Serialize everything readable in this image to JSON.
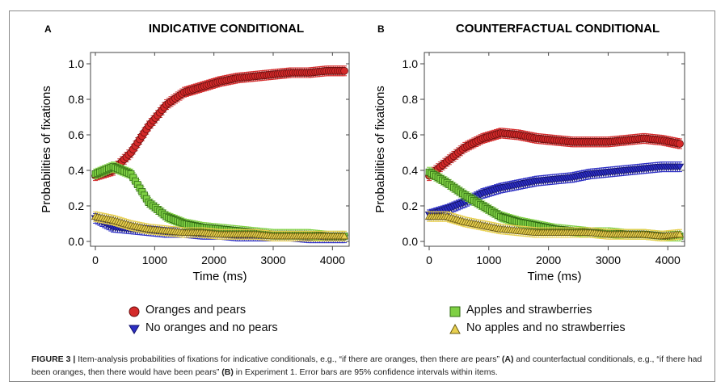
{
  "chart_data": [
    {
      "type": "line",
      "panel": "A",
      "title": "INDICATIVE CONDITIONAL",
      "xlabel": "Time (ms)",
      "ylabel": "Probabilities of fixations",
      "xlim": [
        0,
        4200
      ],
      "ylim": [
        0,
        1.0
      ],
      "xticks": [
        0,
        1000,
        2000,
        3000,
        4000
      ],
      "yticks": [
        0.0,
        0.2,
        0.4,
        0.6,
        0.8,
        1.0
      ],
      "x": [
        0,
        300,
        600,
        900,
        1200,
        1500,
        1800,
        2100,
        2400,
        2700,
        3000,
        3300,
        3600,
        3900,
        4200
      ],
      "series": [
        {
          "name": "Oranges and pears",
          "values": [
            0.37,
            0.4,
            0.5,
            0.65,
            0.77,
            0.84,
            0.87,
            0.9,
            0.92,
            0.93,
            0.94,
            0.95,
            0.95,
            0.96,
            0.96
          ]
        },
        {
          "name": "No oranges and no pears",
          "values": [
            0.13,
            0.08,
            0.07,
            0.06,
            0.05,
            0.05,
            0.04,
            0.04,
            0.03,
            0.03,
            0.03,
            0.03,
            0.02,
            0.02,
            0.02
          ]
        },
        {
          "name": "Apples and strawberries",
          "values": [
            0.38,
            0.42,
            0.38,
            0.22,
            0.14,
            0.1,
            0.08,
            0.07,
            0.06,
            0.05,
            0.04,
            0.04,
            0.04,
            0.03,
            0.03
          ]
        },
        {
          "name": "No apples and no strawberries",
          "values": [
            0.14,
            0.12,
            0.09,
            0.07,
            0.06,
            0.05,
            0.05,
            0.04,
            0.04,
            0.04,
            0.03,
            0.03,
            0.03,
            0.03,
            0.03
          ]
        }
      ]
    },
    {
      "type": "line",
      "panel": "B",
      "title": "COUNTERFACTUAL CONDITIONAL",
      "xlabel": "Time (ms)",
      "ylabel": "Probabilities of fixations",
      "xlim": [
        0,
        4200
      ],
      "ylim": [
        0,
        1.0
      ],
      "xticks": [
        0,
        1000,
        2000,
        3000,
        4000
      ],
      "yticks": [
        0.0,
        0.2,
        0.4,
        0.6,
        0.8,
        1.0
      ],
      "x": [
        0,
        300,
        600,
        900,
        1200,
        1500,
        1800,
        2100,
        2400,
        2700,
        3000,
        3300,
        3600,
        3900,
        4200
      ],
      "series": [
        {
          "name": "Oranges and pears",
          "values": [
            0.37,
            0.45,
            0.53,
            0.58,
            0.61,
            0.6,
            0.58,
            0.57,
            0.56,
            0.56,
            0.56,
            0.57,
            0.58,
            0.57,
            0.55
          ]
        },
        {
          "name": "No oranges and no pears",
          "values": [
            0.15,
            0.18,
            0.22,
            0.27,
            0.3,
            0.32,
            0.34,
            0.35,
            0.36,
            0.38,
            0.39,
            0.4,
            0.41,
            0.42,
            0.42
          ]
        },
        {
          "name": "Apples and strawberries",
          "values": [
            0.39,
            0.33,
            0.26,
            0.2,
            0.14,
            0.11,
            0.09,
            0.07,
            0.06,
            0.05,
            0.05,
            0.04,
            0.04,
            0.03,
            0.03
          ]
        },
        {
          "name": "No apples and no strawberries",
          "values": [
            0.14,
            0.14,
            0.11,
            0.09,
            0.07,
            0.06,
            0.05,
            0.05,
            0.05,
            0.05,
            0.04,
            0.04,
            0.04,
            0.03,
            0.04
          ]
        }
      ]
    }
  ],
  "colors": {
    "Oranges and pears": "#d42a2a",
    "No oranges and no pears": "#2d2fc4",
    "Apples and strawberries": "#7fd044",
    "No apples and no strawberries": "#e8d050"
  },
  "legend": {
    "items": [
      {
        "label": "Oranges and pears",
        "marker": "circle"
      },
      {
        "label": "No oranges and no pears",
        "marker": "triangle-down"
      },
      {
        "label": "Apples and strawberries",
        "marker": "square"
      },
      {
        "label": "No apples and no strawberries",
        "marker": "triangle-up"
      }
    ]
  },
  "caption": {
    "label": "FIGURE 3 |",
    "text1": " Item-analysis probabilities of fixations for indicative conditionals, e.g., “if there are oranges, then there are pears” ",
    "ref_a": "(A)",
    "text2": " and counterfactual conditionals, e.g., “if there had been oranges, then there would have been pears” ",
    "ref_b": "(B)",
    "text3": " in Experiment 1. Error bars are 95% confidence intervals within items."
  }
}
